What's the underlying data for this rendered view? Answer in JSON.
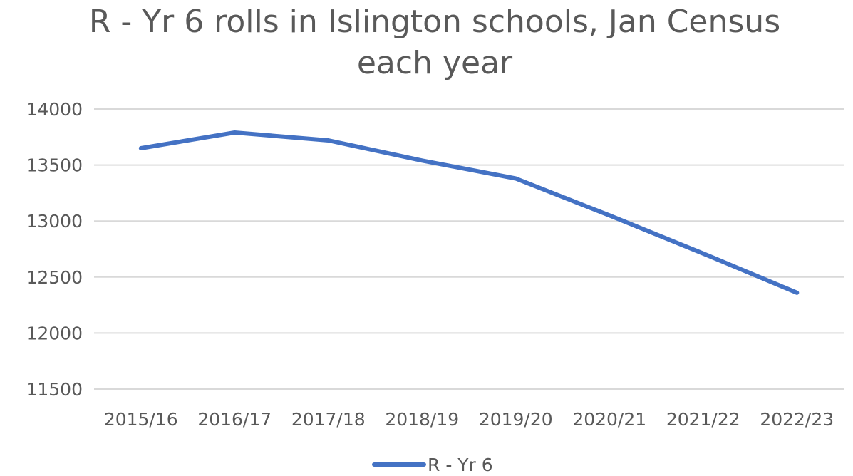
{
  "chart_data": {
    "type": "line",
    "title_lines": [
      "R - Yr 6 rolls in Islington schools, Jan Census",
      "each year"
    ],
    "categories": [
      "2015/16",
      "2016/17",
      "2017/18",
      "2018/19",
      "2019/20",
      "2020/21",
      "2021/22",
      "2022/23"
    ],
    "series": [
      {
        "name": "R - Yr 6",
        "color": "#4472C4",
        "values": [
          13650,
          13790,
          13720,
          13540,
          13380,
          13050,
          12710,
          12360
        ]
      }
    ],
    "y_ticks": [
      "11500",
      "12000",
      "12500",
      "13000",
      "13500",
      "14000"
    ],
    "ylim": [
      11500,
      14000
    ],
    "grid": true,
    "legend_position": "bottom"
  }
}
